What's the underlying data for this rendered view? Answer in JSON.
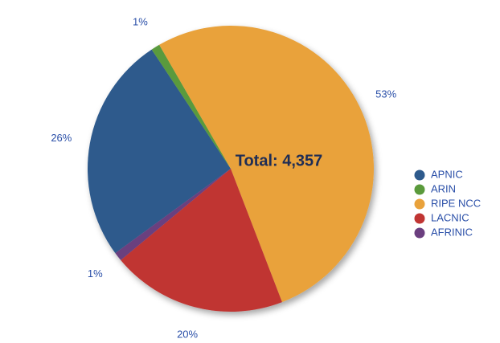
{
  "chart_data": {
    "type": "pie",
    "annotation": "Total: 4,357",
    "categories": [
      "APNIC",
      "ARIN",
      "RIPE NCC",
      "LACNIC",
      "AFRINIC"
    ],
    "values": [
      26,
      1,
      53,
      20,
      1
    ],
    "value_labels": [
      "26%",
      "1%",
      "53%",
      "20%",
      "1%"
    ],
    "colors": [
      "#2e5a8c",
      "#5a9a3c",
      "#e9a23b",
      "#c03533",
      "#6b3f7f"
    ],
    "legend": "right"
  }
}
